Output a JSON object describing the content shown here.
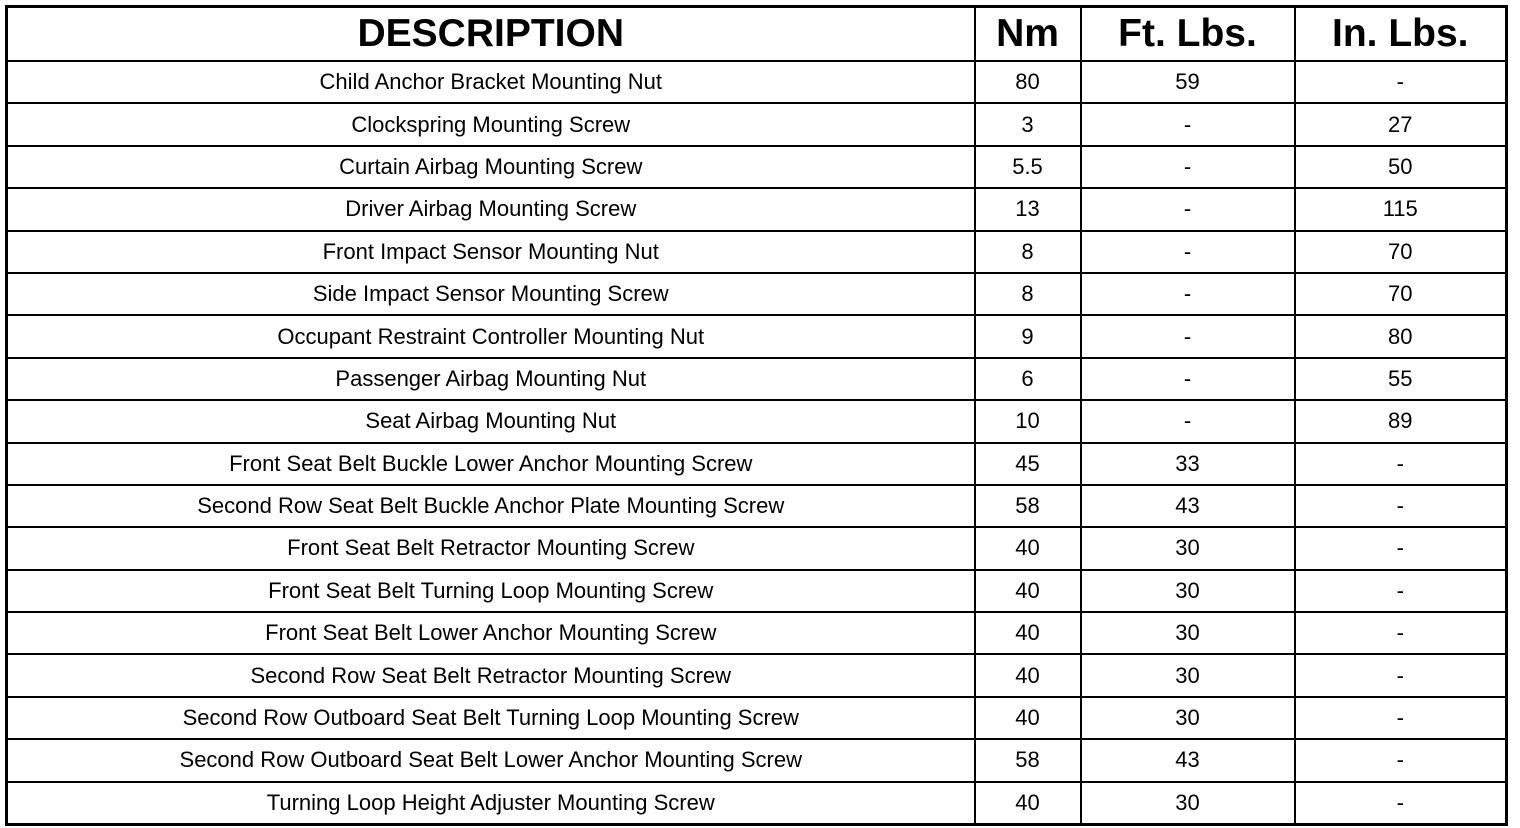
{
  "headers": [
    "DESCRIPTION",
    "Nm",
    "Ft. Lbs.",
    "In. Lbs."
  ],
  "rows": [
    [
      "Child Anchor Bracket Mounting Nut",
      "80",
      "59",
      "-"
    ],
    [
      "Clockspring Mounting Screw",
      "3",
      "-",
      "27"
    ],
    [
      "Curtain Airbag Mounting Screw",
      "5.5",
      "-",
      "50"
    ],
    [
      "Driver Airbag Mounting Screw",
      "13",
      "-",
      "115"
    ],
    [
      "Front Impact Sensor Mounting Nut",
      "8",
      "-",
      "70"
    ],
    [
      "Side Impact Sensor Mounting Screw",
      "8",
      "-",
      "70"
    ],
    [
      "Occupant Restraint Controller Mounting Nut",
      "9",
      "-",
      "80"
    ],
    [
      "Passenger Airbag Mounting Nut",
      "6",
      "-",
      "55"
    ],
    [
      "Seat Airbag Mounting Nut",
      "10",
      "-",
      "89"
    ],
    [
      "Front Seat Belt Buckle Lower Anchor Mounting Screw",
      "45",
      "33",
      "-"
    ],
    [
      "Second Row Seat Belt Buckle Anchor Plate Mounting Screw",
      "58",
      "43",
      "-"
    ],
    [
      "Front Seat Belt Retractor Mounting Screw",
      "40",
      "30",
      "-"
    ],
    [
      "Front Seat Belt Turning Loop Mounting Screw",
      "40",
      "30",
      "-"
    ],
    [
      "Front Seat Belt Lower Anchor Mounting Screw",
      "40",
      "30",
      "-"
    ],
    [
      "Second Row Seat Belt Retractor Mounting Screw",
      "40",
      "30",
      "-"
    ],
    [
      "Second Row Outboard Seat Belt Turning Loop Mounting Screw",
      "40",
      "30",
      "-"
    ],
    [
      "Second Row Outboard Seat Belt Lower Anchor Mounting Screw",
      "58",
      "43",
      "-"
    ],
    [
      "Turning Loop Height Adjuster Mounting Screw",
      "40",
      "30",
      "-"
    ]
  ]
}
